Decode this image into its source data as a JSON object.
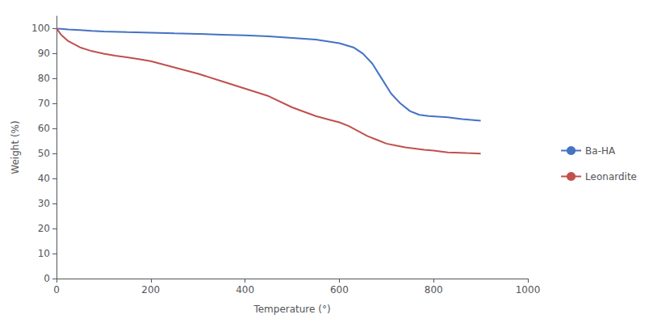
{
  "chart_data": {
    "type": "line",
    "xlabel": "Temperature (°)",
    "ylabel": "Weight (%)",
    "xlim": [
      0,
      1000
    ],
    "ylim": [
      0,
      105
    ],
    "xticks": [
      0,
      200,
      400,
      600,
      800,
      1000
    ],
    "yticks": [
      0,
      10,
      20,
      30,
      40,
      50,
      60,
      70,
      80,
      90,
      100
    ],
    "grid": false,
    "legend": "right",
    "series": [
      {
        "name": "Ba-HA",
        "color": "#4472C4",
        "x": [
          0,
          10,
          25,
          50,
          75,
          100,
          150,
          200,
          250,
          300,
          350,
          400,
          450,
          500,
          550,
          600,
          630,
          650,
          670,
          690,
          710,
          730,
          750,
          770,
          790,
          810,
          830,
          860,
          880,
          900
        ],
        "values": [
          100,
          99.9,
          99.7,
          99.4,
          99.1,
          98.9,
          98.6,
          98.4,
          98.1,
          97.9,
          97.6,
          97.3,
          96.9,
          96.3,
          95.6,
          94.2,
          92.5,
          90.0,
          86.0,
          80.0,
          74.0,
          70.0,
          67.0,
          65.5,
          65.0,
          64.8,
          64.5,
          63.8,
          63.5,
          63.2
        ]
      },
      {
        "name": "Leonardite",
        "color": "#C0504D",
        "x": [
          0,
          10,
          25,
          50,
          75,
          100,
          125,
          150,
          175,
          200,
          250,
          300,
          350,
          400,
          450,
          500,
          550,
          580,
          600,
          620,
          640,
          660,
          680,
          700,
          720,
          740,
          760,
          780,
          800,
          830,
          870,
          900
        ],
        "values": [
          100,
          97.5,
          95.0,
          92.5,
          91.0,
          90.0,
          89.2,
          88.5,
          87.8,
          87.0,
          84.5,
          82.0,
          79.0,
          76.0,
          73.0,
          68.5,
          65.0,
          63.5,
          62.5,
          61.0,
          59.0,
          57.0,
          55.5,
          54.0,
          53.2,
          52.5,
          52.0,
          51.5,
          51.2,
          50.5,
          50.2,
          50.0
        ]
      }
    ]
  }
}
